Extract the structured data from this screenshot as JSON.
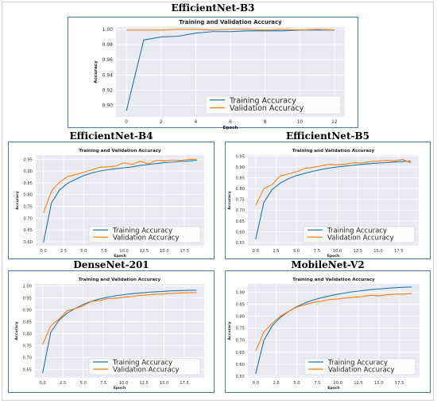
{
  "chart_data": [
    {
      "type": "line",
      "panel_title": "EfficientNet-B3",
      "title": "Training and Validation Accuracy",
      "xlabel": "Epoch",
      "ylabel": "Accuracy",
      "xlim": [
        -0.6,
        12.6
      ],
      "ylim": [
        0.885,
        1.003
      ],
      "xticks": [
        0,
        2,
        4,
        6,
        8,
        10,
        12
      ],
      "yticks": [
        0.9,
        0.92,
        0.94,
        0.96,
        0.98,
        1.0
      ],
      "ytick_labels": [
        "0.90",
        "0.92",
        "0.94",
        "0.96",
        "0.98",
        "1.00"
      ],
      "legend_position": "lower-right",
      "series": [
        {
          "name": "Training Accuracy",
          "color": "#1f77b4",
          "x": [
            0,
            1,
            2,
            3,
            4,
            5,
            6,
            7,
            8,
            9,
            10,
            11,
            12
          ],
          "values": [
            0.893,
            0.986,
            0.99,
            0.991,
            0.995,
            0.997,
            0.997,
            0.998,
            0.998,
            0.998,
            0.999,
            0.999,
            0.999
          ]
        },
        {
          "name": "Validation Accuracy",
          "color": "#ff7f0e",
          "x": [
            0,
            1,
            2,
            3,
            4,
            5,
            6,
            7,
            8,
            9,
            10,
            11,
            12
          ],
          "values": [
            0.999,
            0.999,
            0.999,
            1.0,
            1.0,
            0.999,
            1.0,
            1.0,
            0.999,
            1.0,
            0.999,
            1.0,
            0.999
          ]
        }
      ]
    },
    {
      "type": "line",
      "panel_title": "EfficientNet-B4",
      "title": "Training and Validation Accuracy",
      "xlabel": "Epoch",
      "ylabel": "Accuracy",
      "xlim": [
        -0.95,
        19.95
      ],
      "ylim": [
        0.583,
        0.968
      ],
      "xticks": [
        0,
        2.5,
        5,
        7.5,
        10,
        12.5,
        15,
        17.5
      ],
      "xtick_labels": [
        "0.0",
        "2.5",
        "5.0",
        "7.5",
        "10.0",
        "12.5",
        "15.0",
        "17.5"
      ],
      "yticks": [
        0.6,
        0.65,
        0.7,
        0.75,
        0.8,
        0.85,
        0.9,
        0.95
      ],
      "ytick_labels": [
        "0.60",
        "0.65",
        "0.70",
        "0.75",
        "0.80",
        "0.85",
        "0.90",
        "0.95"
      ],
      "legend_position": "lower-right",
      "series": [
        {
          "name": "Training Accuracy",
          "color": "#1f77b4",
          "x": [
            0,
            1,
            2,
            3,
            4,
            5,
            6,
            7,
            8,
            9,
            10,
            11,
            12,
            13,
            14,
            15,
            16,
            17,
            18,
            19
          ],
          "values": [
            0.596,
            0.765,
            0.82,
            0.848,
            0.865,
            0.881,
            0.892,
            0.9,
            0.906,
            0.91,
            0.914,
            0.918,
            0.924,
            0.928,
            0.932,
            0.936,
            0.938,
            0.941,
            0.943,
            0.946
          ]
        },
        {
          "name": "Validation Accuracy",
          "color": "#ff7f0e",
          "x": [
            0,
            1,
            2,
            3,
            4,
            5,
            6,
            7,
            8,
            9,
            10,
            11,
            12,
            13,
            14,
            15,
            16,
            17,
            18,
            19
          ],
          "values": [
            0.722,
            0.815,
            0.853,
            0.877,
            0.885,
            0.895,
            0.905,
            0.916,
            0.918,
            0.922,
            0.935,
            0.928,
            0.942,
            0.931,
            0.946,
            0.944,
            0.947,
            0.945,
            0.95,
            0.95
          ]
        }
      ]
    },
    {
      "type": "line",
      "panel_title": "EfficientNet-B5",
      "title": "Training and Validation Accuracy",
      "xlabel": "Epoch",
      "ylabel": "Accuracy",
      "xlim": [
        -0.95,
        19.95
      ],
      "ylim": [
        0.535,
        0.955
      ],
      "xticks": [
        0,
        2.5,
        5,
        7.5,
        10,
        12.5,
        15,
        17.5
      ],
      "xtick_labels": [
        "0.0",
        "2.5",
        "5.0",
        "7.5",
        "10.0",
        "12.5",
        "15.0",
        "17.5"
      ],
      "yticks": [
        0.55,
        0.6,
        0.65,
        0.7,
        0.75,
        0.8,
        0.85,
        0.9,
        0.95
      ],
      "ytick_labels": [
        "0.55",
        "0.60",
        "0.65",
        "0.70",
        "0.75",
        "0.80",
        "0.85",
        "0.90",
        "0.95"
      ],
      "legend_position": "lower-right",
      "series": [
        {
          "name": "Training Accuracy",
          "color": "#1f77b4",
          "x": [
            0,
            1,
            2,
            3,
            4,
            5,
            6,
            7,
            8,
            9,
            10,
            11,
            12,
            13,
            14,
            15,
            16,
            17,
            18,
            19
          ],
          "values": [
            0.565,
            0.735,
            0.795,
            0.825,
            0.845,
            0.86,
            0.87,
            0.88,
            0.888,
            0.895,
            0.9,
            0.904,
            0.908,
            0.912,
            0.915,
            0.918,
            0.92,
            0.923,
            0.925,
            0.927
          ]
        },
        {
          "name": "Validation Accuracy",
          "color": "#ff7f0e",
          "x": [
            0,
            1,
            2,
            3,
            4,
            5,
            6,
            7,
            8,
            9,
            10,
            11,
            12,
            13,
            14,
            15,
            16,
            17,
            18,
            19
          ],
          "values": [
            0.722,
            0.8,
            0.818,
            0.858,
            0.868,
            0.878,
            0.893,
            0.898,
            0.905,
            0.912,
            0.91,
            0.913,
            0.92,
            0.918,
            0.925,
            0.927,
            0.93,
            0.928,
            0.935,
            0.918
          ]
        }
      ]
    },
    {
      "type": "line",
      "panel_title": "DenseNet-201",
      "title": "Training and Validation Accuracy",
      "xlabel": "Epoch",
      "ylabel": "Accuracy",
      "xlim": [
        -0.95,
        19.95
      ],
      "ylim": [
        0.615,
        1.008
      ],
      "xticks": [
        0,
        2.5,
        5,
        7.5,
        10,
        12.5,
        15,
        17.5
      ],
      "xtick_labels": [
        "0.0",
        "2.5",
        "5.0",
        "7.5",
        "10.0",
        "12.5",
        "15.0",
        "17.5"
      ],
      "yticks": [
        0.65,
        0.7,
        0.75,
        0.8,
        0.85,
        0.9,
        0.95,
        1.0
      ],
      "ytick_labels": [
        "0.65",
        "0.70",
        "0.75",
        "0.80",
        "0.85",
        "0.90",
        "0.95",
        "1.00"
      ],
      "legend_position": "lower-right",
      "series": [
        {
          "name": "Training Accuracy",
          "color": "#1f77b4",
          "x": [
            0,
            1,
            2,
            3,
            4,
            5,
            6,
            7,
            8,
            9,
            10,
            11,
            12,
            13,
            14,
            15,
            16,
            17,
            18,
            19
          ],
          "values": [
            0.635,
            0.805,
            0.855,
            0.885,
            0.905,
            0.922,
            0.935,
            0.945,
            0.952,
            0.958,
            0.963,
            0.967,
            0.97,
            0.973,
            0.975,
            0.977,
            0.979,
            0.98,
            0.981,
            0.982
          ]
        },
        {
          "name": "Validation Accuracy",
          "color": "#ff7f0e",
          "x": [
            0,
            1,
            2,
            3,
            4,
            5,
            6,
            7,
            8,
            9,
            10,
            11,
            12,
            13,
            14,
            15,
            16,
            17,
            18,
            19
          ],
          "values": [
            0.755,
            0.832,
            0.86,
            0.895,
            0.905,
            0.915,
            0.935,
            0.938,
            0.946,
            0.948,
            0.952,
            0.955,
            0.96,
            0.962,
            0.965,
            0.966,
            0.968,
            0.97,
            0.971,
            0.972
          ]
        }
      ]
    },
    {
      "type": "line",
      "panel_title": "MobileNet-V2",
      "title": "Training and Validation Accuracy",
      "xlabel": "Epoch",
      "ylabel": "Accuracy",
      "xlim": [
        -0.95,
        19.95
      ],
      "ylim": [
        0.543,
        0.935
      ],
      "xticks": [
        0,
        2.5,
        5,
        7.5,
        10,
        12.5,
        15,
        17.5
      ],
      "xtick_labels": [
        "0.0",
        "2.5",
        "5.0",
        "7.5",
        "10.0",
        "12.5",
        "15.0",
        "17.5"
      ],
      "yticks": [
        0.55,
        0.6,
        0.65,
        0.7,
        0.75,
        0.8,
        0.85,
        0.9
      ],
      "ytick_labels": [
        "0.55",
        "0.60",
        "0.65",
        "0.70",
        "0.75",
        "0.80",
        "0.85",
        "0.90"
      ],
      "legend_position": "lower-right",
      "series": [
        {
          "name": "Training Accuracy",
          "color": "#1f77b4",
          "x": [
            0,
            1,
            2,
            3,
            4,
            5,
            6,
            7,
            8,
            9,
            10,
            11,
            12,
            13,
            14,
            15,
            16,
            17,
            18,
            19
          ],
          "values": [
            0.56,
            0.7,
            0.76,
            0.795,
            0.82,
            0.84,
            0.855,
            0.868,
            0.877,
            0.885,
            0.892,
            0.898,
            0.903,
            0.907,
            0.911,
            0.914,
            0.917,
            0.919,
            0.921,
            0.922
          ]
        },
        {
          "name": "Validation Accuracy",
          "color": "#ff7f0e",
          "x": [
            0,
            1,
            2,
            3,
            4,
            5,
            6,
            7,
            8,
            9,
            10,
            11,
            12,
            13,
            14,
            15,
            16,
            17,
            18,
            19
          ],
          "values": [
            0.655,
            0.735,
            0.77,
            0.8,
            0.82,
            0.838,
            0.848,
            0.858,
            0.862,
            0.87,
            0.872,
            0.876,
            0.88,
            0.882,
            0.888,
            0.885,
            0.89,
            0.892,
            0.893,
            0.895
          ]
        }
      ]
    }
  ]
}
